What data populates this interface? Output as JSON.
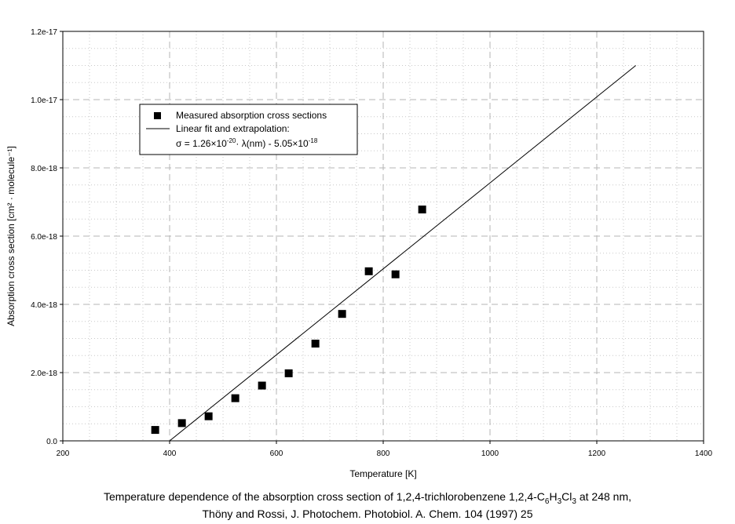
{
  "chart_data": {
    "type": "scatter",
    "xlabel": "Temperature [K]",
    "ylabel": "Absorption cross section [cm² · molecule⁻¹]",
    "xlim": [
      200,
      1400
    ],
    "ylim": [
      0,
      1.2e-17
    ],
    "x_ticks": [
      "200",
      "400",
      "600",
      "800",
      "1000",
      "1200",
      "1400"
    ],
    "y_ticks": [
      "0.0",
      "2.0e-18",
      "4.0e-18",
      "6.0e-18",
      "8.0e-18",
      "1.0e-17",
      "1.2e-17"
    ],
    "grid": true,
    "legend_position": "top-left",
    "series": [
      {
        "name": "Measured absorption cross sections",
        "kind": "points",
        "marker": "square",
        "x": [
          373,
          423,
          473,
          523,
          573,
          623,
          673,
          723,
          773,
          823,
          873
        ],
        "y": [
          3.2e-19,
          5.2e-19,
          7.2e-19,
          1.25e-18,
          1.62e-18,
          1.98e-18,
          2.85e-18,
          3.72e-18,
          4.97e-18,
          4.88e-18,
          6.78e-18
        ]
      },
      {
        "name": "Linear fit and extrapolation:",
        "kind": "line",
        "x": [
          400,
          1273
        ],
        "y": [
          0,
          1.1e-17
        ]
      }
    ],
    "fit_equation": {
      "prefix": "σ = 1.26×10",
      "exp1": "-20",
      "middle": "· λ(nm) - 5.05×10",
      "exp2": "-18"
    }
  },
  "caption": {
    "line1_a": "Temperature dependence of the absorption cross section of 1,2,4-trichlorobenzene 1,2,4-C",
    "sub1": "6",
    "line1_b": "H",
    "sub2": "3",
    "line1_c": "Cl",
    "sub3": "3",
    "line1_d": " at 248 nm,",
    "line2": "Thöny and Rossi, J. Photochem. Photobiol. A. Chem. 104 (1997) 25"
  }
}
